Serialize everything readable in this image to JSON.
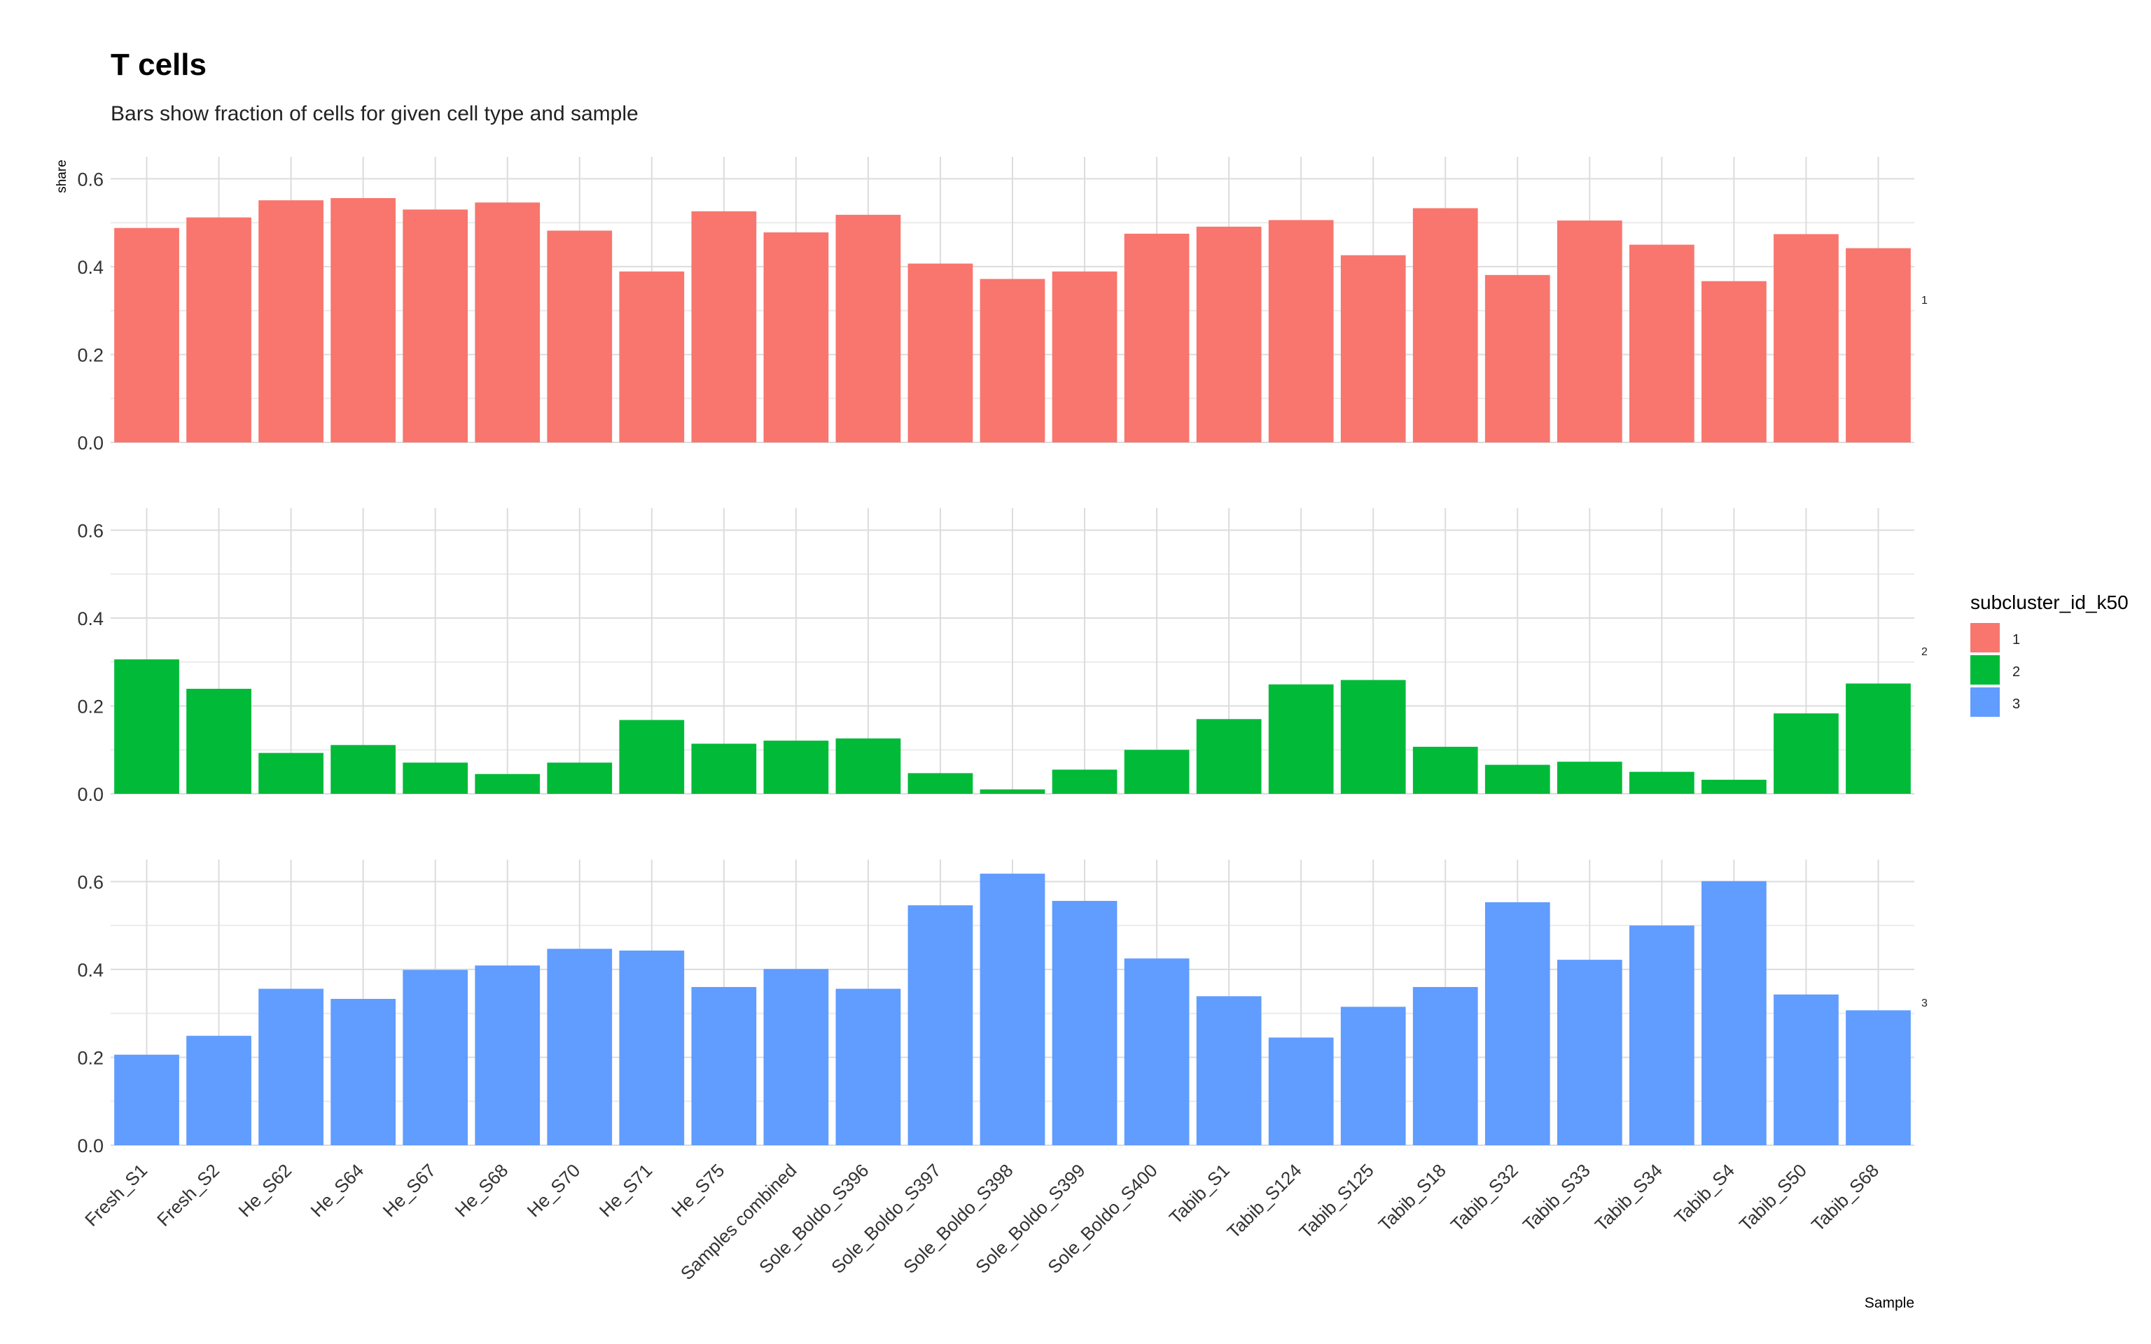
{
  "chart_data": {
    "type": "bar",
    "title": "T cells",
    "subtitle": "Bars show fraction of cells for given cell type and sample",
    "xlabel": "Sample",
    "ylabel": "share",
    "ylim": [
      0,
      0.65
    ],
    "yticks": [
      "0.0",
      "0.2",
      "0.4",
      "0.6"
    ],
    "grid": true,
    "facet": "rows",
    "legend": {
      "title": "subcluster_id_k50",
      "position": "right",
      "entries": [
        {
          "label": "1",
          "color": "#F8766D"
        },
        {
          "label": "2",
          "color": "#00BA38"
        },
        {
          "label": "3",
          "color": "#619CFF"
        }
      ]
    },
    "categories": [
      "Fresh_S1",
      "Fresh_S2",
      "He_S62",
      "He_S64",
      "He_S67",
      "He_S68",
      "He_S70",
      "He_S71",
      "He_S75",
      "Samples combined",
      "Sole_Boldo_S396",
      "Sole_Boldo_S397",
      "Sole_Boldo_S398",
      "Sole_Boldo_S399",
      "Sole_Boldo_S400",
      "Tabib_S1",
      "Tabib_S124",
      "Tabib_S125",
      "Tabib_S18",
      "Tabib_S32",
      "Tabib_S33",
      "Tabib_S34",
      "Tabib_S4",
      "Tabib_S50",
      "Tabib_S68"
    ],
    "series": [
      {
        "name": "1",
        "strip": "1",
        "color": "#F8766D",
        "values": [
          0.488,
          0.512,
          0.551,
          0.556,
          0.53,
          0.546,
          0.482,
          0.389,
          0.526,
          0.478,
          0.518,
          0.407,
          0.372,
          0.389,
          0.475,
          0.491,
          0.506,
          0.426,
          0.533,
          0.381,
          0.505,
          0.45,
          0.367,
          0.474,
          0.442
        ]
      },
      {
        "name": "2",
        "strip": "2",
        "color": "#00BA38",
        "values": [
          0.306,
          0.239,
          0.093,
          0.111,
          0.071,
          0.045,
          0.071,
          0.168,
          0.114,
          0.121,
          0.126,
          0.047,
          0.01,
          0.055,
          0.1,
          0.17,
          0.249,
          0.259,
          0.107,
          0.066,
          0.073,
          0.05,
          0.032,
          0.183,
          0.251
        ]
      },
      {
        "name": "3",
        "strip": "3",
        "color": "#619CFF",
        "values": [
          0.206,
          0.249,
          0.356,
          0.333,
          0.399,
          0.409,
          0.447,
          0.443,
          0.36,
          0.401,
          0.356,
          0.546,
          0.618,
          0.556,
          0.425,
          0.339,
          0.245,
          0.315,
          0.36,
          0.553,
          0.422,
          0.5,
          0.601,
          0.343,
          0.307
        ]
      }
    ]
  }
}
